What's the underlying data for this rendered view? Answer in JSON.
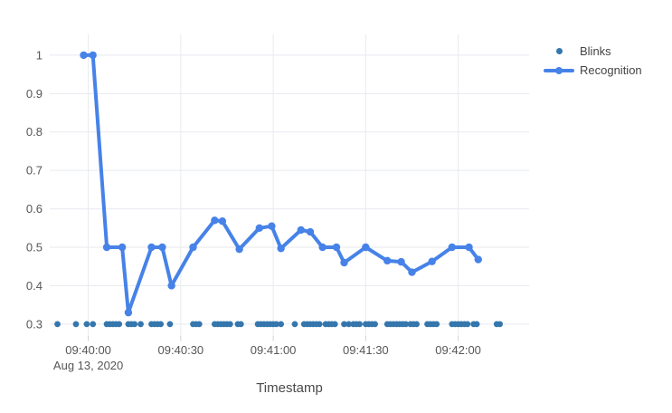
{
  "chart_data": {
    "type": "line",
    "title": "",
    "xlabel": "Timestamp",
    "x_axis": {
      "tick_labels": [
        "09:40:00",
        "09:40:30",
        "09:41:00",
        "09:41:30",
        "09:42:00"
      ],
      "tick_seconds": [
        0,
        30,
        60,
        90,
        120
      ],
      "date_label": "Aug 13, 2020",
      "range_seconds": [
        -12.5,
        143
      ]
    },
    "y_axis": {
      "tick_values": [
        0.3,
        0.4,
        0.5,
        0.6,
        0.7,
        0.8,
        0.9,
        1
      ],
      "tick_labels": [
        "0.3",
        "0.4",
        "0.5",
        "0.6",
        "0.7",
        "0.8",
        "0.9",
        "1"
      ],
      "range": [
        0.269,
        1.054
      ]
    },
    "legend": {
      "position": "top-right"
    },
    "series": [
      {
        "name": "Blinks",
        "type": "scatter-markers",
        "color": "#3577ad",
        "marker_y": 0.3,
        "x_seconds": [
          -10,
          -4,
          -0.5,
          1.5,
          6,
          7,
          8,
          9,
          10,
          13,
          14,
          15,
          17,
          20.5,
          21.5,
          22.5,
          23.5,
          26.5,
          34,
          35,
          36,
          41,
          42,
          43,
          44,
          45,
          46,
          48.5,
          49.5,
          55,
          56,
          57,
          58,
          59,
          60,
          61,
          62.5,
          67,
          70,
          71,
          72,
          73,
          74,
          75,
          77,
          78,
          79,
          80,
          83,
          84.5,
          86,
          87,
          88,
          90,
          91,
          92,
          93,
          97,
          98,
          99,
          100,
          101,
          102,
          103,
          104.5,
          105.5,
          106.5,
          110,
          111,
          112,
          113,
          118,
          119,
          120,
          121,
          122,
          123,
          125,
          126,
          132.5,
          133.5
        ]
      },
      {
        "name": "Recognition",
        "type": "line-markers",
        "color": "#4682e8",
        "points": [
          [
            -1.5,
            1
          ],
          [
            1.5,
            1
          ],
          [
            6,
            0.5
          ],
          [
            11,
            0.5
          ],
          [
            13,
            0.33
          ],
          [
            20.5,
            0.5
          ],
          [
            24,
            0.5
          ],
          [
            27,
            0.4
          ],
          [
            34,
            0.5
          ],
          [
            41,
            0.57
          ],
          [
            43.5,
            0.568
          ],
          [
            49,
            0.495
          ],
          [
            55.5,
            0.55
          ],
          [
            59.5,
            0.555
          ],
          [
            62.5,
            0.497
          ],
          [
            69,
            0.545
          ],
          [
            72,
            0.54
          ],
          [
            76,
            0.5
          ],
          [
            80.5,
            0.5
          ],
          [
            83,
            0.46
          ],
          [
            90,
            0.5
          ],
          [
            97,
            0.465
          ],
          [
            101.5,
            0.462
          ],
          [
            105,
            0.435
          ],
          [
            111.5,
            0.463
          ],
          [
            118,
            0.5
          ],
          [
            123.5,
            0.5
          ],
          [
            126.5,
            0.468
          ]
        ]
      }
    ],
    "style": {
      "grid_color": "#e8eaef",
      "tick_mark_color": "#d2d2d2",
      "axis_text_color": "#565656",
      "title_text_color": "#4a4a4a",
      "background": "#ffffff"
    }
  }
}
